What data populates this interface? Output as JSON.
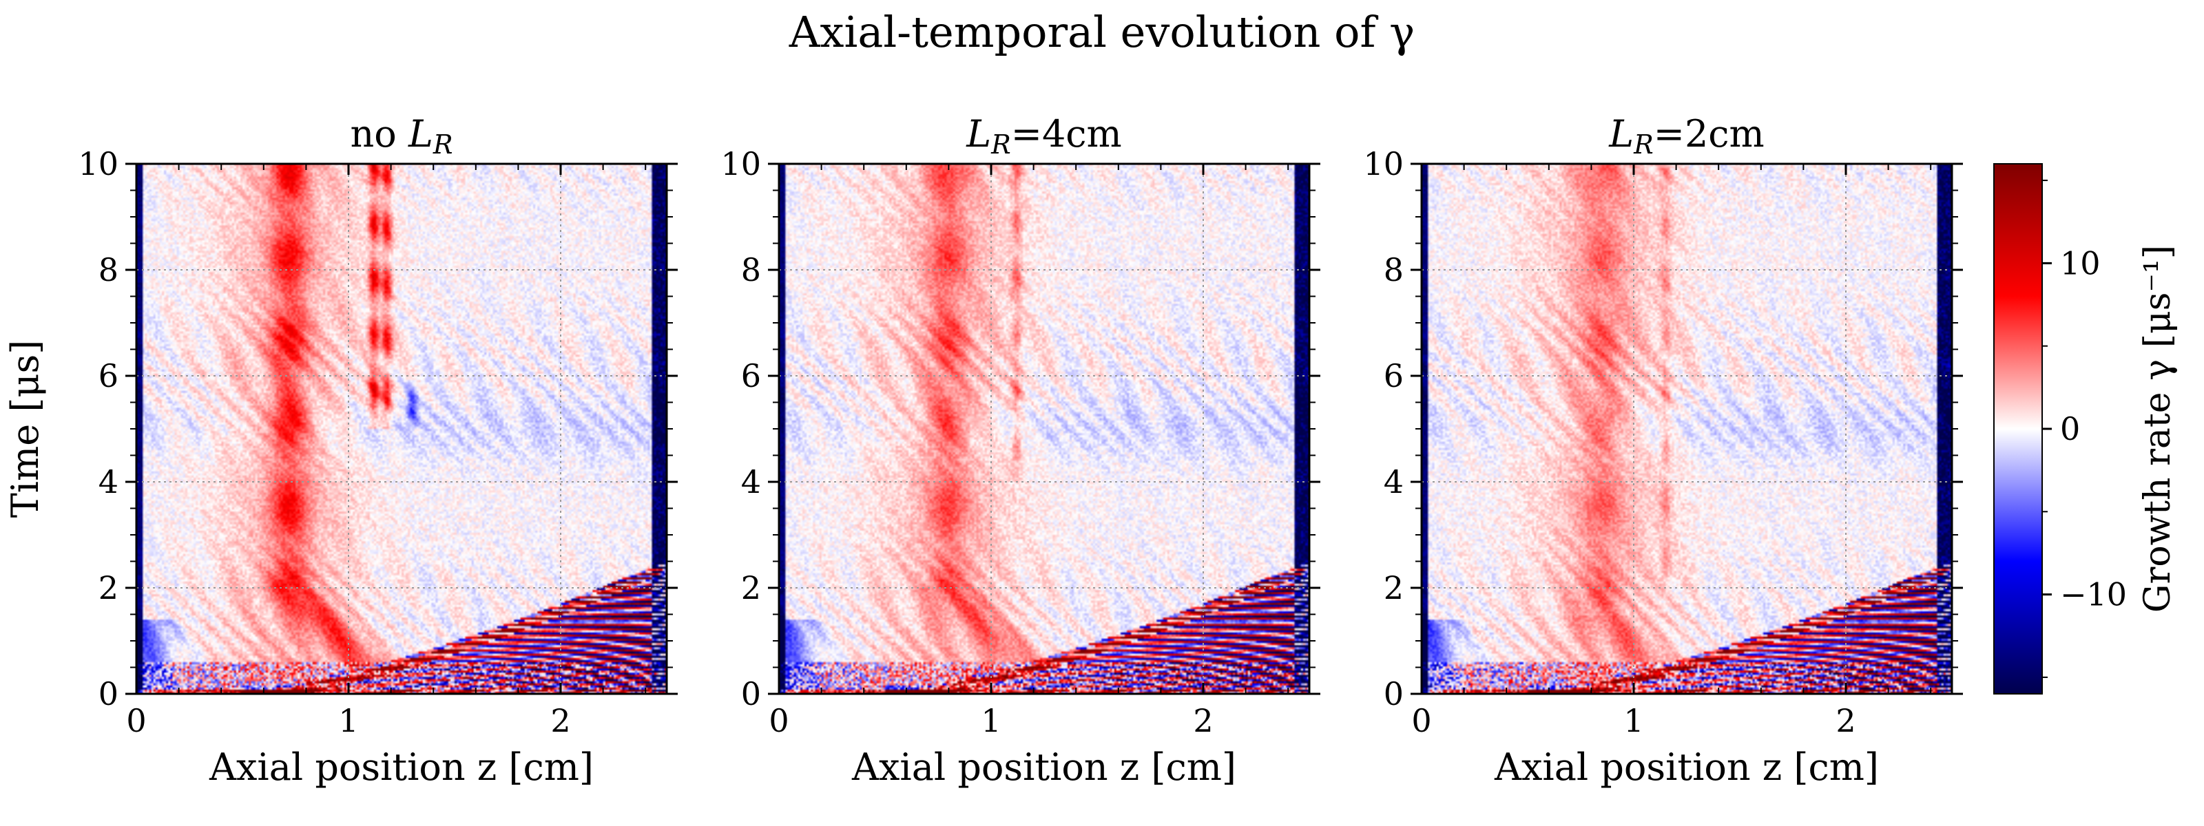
{
  "figure": {
    "suptitle": "Axial-temporal evolution of γ"
  },
  "colorbar": {
    "label": "Growth rate γ  [μs⁻¹]",
    "ticks": [
      -10,
      0,
      10
    ],
    "range": [
      -16,
      16
    ],
    "colormap": "seismic",
    "colors": {
      "low": "#00004c",
      "blue": "#0000ff",
      "mid": "#ffffff",
      "red": "#ff0000",
      "high": "#800000"
    }
  },
  "chart_data": [
    {
      "type": "heatmap",
      "title": "no L_R",
      "title_parts": {
        "prefix": "no ",
        "symbol": "L",
        "subscript": "R",
        "suffix": ""
      },
      "xlabel": "Axial position z [cm]",
      "ylabel": "Time [μs]",
      "xlim": [
        0,
        2.5
      ],
      "ylim": [
        0,
        10
      ],
      "xticks": [
        0,
        1,
        2
      ],
      "yticks": [
        0,
        2,
        4,
        6,
        8,
        10
      ],
      "grid": true,
      "features": {
        "red_column": {
          "z": 0.72,
          "t_start": 2.0,
          "t_end": 10.0,
          "strength": 6
        },
        "filaments": [
          {
            "z": 1.12,
            "t_start": 5.0,
            "t_end": 10.0,
            "strength": 9
          },
          {
            "z": 1.18,
            "t_start": 5.0,
            "t_end": 10.0,
            "strength": 8
          },
          {
            "z": 1.3,
            "t_start": 5.0,
            "t_end": 6.0,
            "strength": -6
          }
        ],
        "diagonal_streak_end": {
          "z": 2.45,
          "t": 2.3
        },
        "left_blue_region_t_end": 1.4
      }
    },
    {
      "type": "heatmap",
      "title": "L_R=4cm",
      "title_parts": {
        "prefix": "",
        "symbol": "L",
        "subscript": "R",
        "suffix": "=4cm"
      },
      "xlabel": "Axial position z [cm]",
      "ylabel": "",
      "xlim": [
        0,
        2.5
      ],
      "ylim": [
        0,
        10
      ],
      "xticks": [
        0,
        1,
        2
      ],
      "yticks": [
        0,
        2,
        4,
        6,
        8,
        10
      ],
      "grid": true,
      "features": {
        "red_column": {
          "z": 0.8,
          "t_start": 2.0,
          "t_end": 10.0,
          "strength": 4
        },
        "filaments": [
          {
            "z": 1.12,
            "t_start": 4.0,
            "t_end": 10.0,
            "strength": 4
          }
        ],
        "diagonal_streak_end": {
          "z": 2.45,
          "t": 2.3
        },
        "left_blue_region_t_end": 1.4
      }
    },
    {
      "type": "heatmap",
      "title": "L_R=2cm",
      "title_parts": {
        "prefix": "",
        "symbol": "L",
        "subscript": "R",
        "suffix": "=2cm"
      },
      "xlabel": "Axial position z [cm]",
      "ylabel": "",
      "xlim": [
        0,
        2.5
      ],
      "ylim": [
        0,
        10
      ],
      "xticks": [
        0,
        1,
        2
      ],
      "yticks": [
        0,
        2,
        4,
        6,
        8,
        10
      ],
      "grid": true,
      "features": {
        "red_column": {
          "z": 0.85,
          "t_start": 1.5,
          "t_end": 10.0,
          "strength": 3
        },
        "filaments": [
          {
            "z": 1.15,
            "t_start": 2.0,
            "t_end": 10.0,
            "strength": 3
          }
        ],
        "diagonal_streak_end": {
          "z": 2.45,
          "t": 2.3
        },
        "left_blue_region_t_end": 1.4
      }
    }
  ]
}
